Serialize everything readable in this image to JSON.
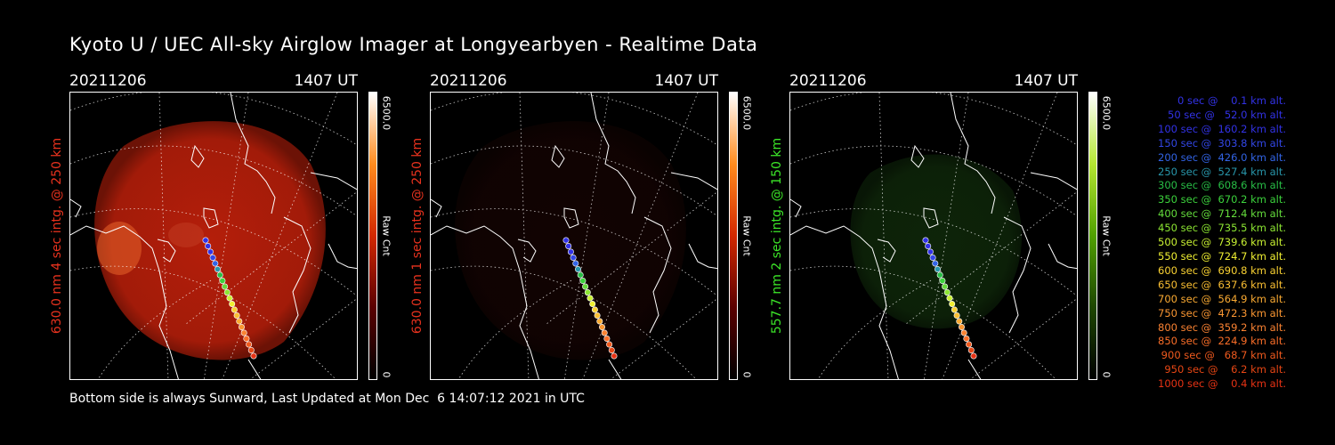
{
  "title": "Kyoto U / UEC All-sky Airglow Imager at Longyearbyen - Realtime Data",
  "footer": "Bottom side is always Sunward, Last Updated at Mon Dec  6 14:07:12 2021 in UTC",
  "panels": [
    {
      "date": "20211206",
      "time": "1407 UT",
      "side_label": "630.0 nm 4 sec intg. @ 250 km",
      "label_color": "#e8321e",
      "cbar_max": "6500.0",
      "cbar_unit": "Raw Cnt",
      "cbar_min": "0",
      "cbar_colors": [
        "#ffffff",
        "#ff8c1e",
        "#d22800",
        "#5a0000",
        "#000000"
      ],
      "emission_color": "#b41e0a",
      "emission_level": 1.0
    },
    {
      "date": "20211206",
      "time": "1407 UT",
      "side_label": "630.0 nm 1 sec intg. @ 250 km",
      "label_color": "#e8321e",
      "cbar_max": "6500.0",
      "cbar_unit": "Raw Cnt",
      "cbar_min": "0",
      "cbar_colors": [
        "#ffffff",
        "#ff8c1e",
        "#d22800",
        "#5a0000",
        "#000000"
      ],
      "emission_color": "#3a0a06",
      "emission_level": 0.3
    },
    {
      "date": "20211206",
      "time": "1407 UT",
      "side_label": "557.7 nm 2 sec intg. @ 150 km",
      "label_color": "#3ce628",
      "cbar_max": "6500.0",
      "cbar_unit": "Raw Cnt",
      "cbar_min": "0",
      "cbar_colors": [
        "#ffffff",
        "#b4e632",
        "#50a000",
        "#1e4600",
        "#000000"
      ],
      "emission_color": "#1e5014",
      "emission_level": 0.45
    }
  ],
  "trajectory_legend": [
    {
      "text": "   0 sec @    0.1 km alt.",
      "color": "#3232e6"
    },
    {
      "text": "  50 sec @   52.0 km alt.",
      "color": "#3232e6"
    },
    {
      "text": " 100 sec @  160.2 km alt.",
      "color": "#3232e6"
    },
    {
      "text": " 150 sec @  303.8 km alt.",
      "color": "#3246e6"
    },
    {
      "text": " 200 sec @  426.0 km alt.",
      "color": "#3264e6"
    },
    {
      "text": " 250 sec @  527.4 km alt.",
      "color": "#2896aa"
    },
    {
      "text": " 300 sec @  608.6 km alt.",
      "color": "#28be46"
    },
    {
      "text": " 350 sec @  670.2 km alt.",
      "color": "#3cd23c"
    },
    {
      "text": " 400 sec @  712.4 km alt.",
      "color": "#64dc3c"
    },
    {
      "text": " 450 sec @  735.5 km alt.",
      "color": "#8ce632"
    },
    {
      "text": " 500 sec @  739.6 km alt.",
      "color": "#c8f032"
    },
    {
      "text": " 550 sec @  724.7 km alt.",
      "color": "#f0f032"
    },
    {
      "text": " 600 sec @  690.8 km alt.",
      "color": "#fad232"
    },
    {
      "text": " 650 sec @  637.6 km alt.",
      "color": "#fabe32"
    },
    {
      "text": " 700 sec @  564.9 km alt.",
      "color": "#faaa32"
    },
    {
      "text": " 750 sec @  472.3 km alt.",
      "color": "#fa9632"
    },
    {
      "text": " 800 sec @  359.2 km alt.",
      "color": "#fa8232"
    },
    {
      "text": " 850 sec @  224.9 km alt.",
      "color": "#fa6e28"
    },
    {
      "text": " 900 sec @   68.7 km alt.",
      "color": "#f05a1e"
    },
    {
      "text": " 950 sec @    6.2 km alt.",
      "color": "#e64614"
    },
    {
      "text": "1000 sec @    0.4 km alt.",
      "color": "#e63214"
    }
  ]
}
